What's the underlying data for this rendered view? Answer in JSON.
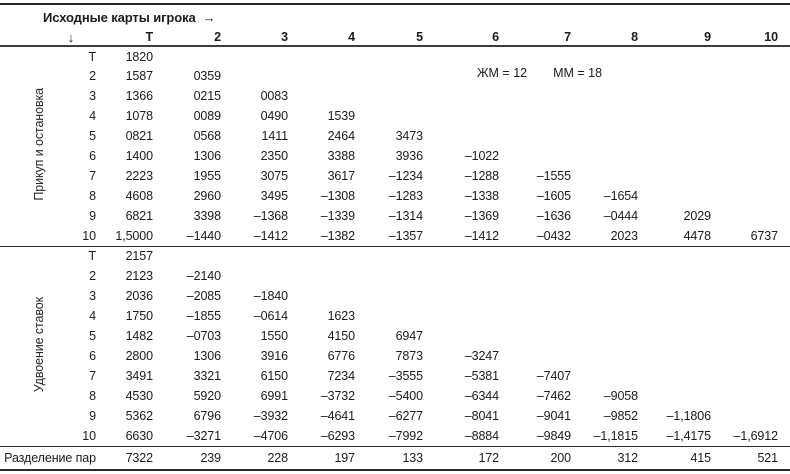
{
  "page": {
    "bg": "#ffffff",
    "text_color": "#1c1c1c",
    "line_color": "#2b2b2b"
  },
  "header": {
    "title": "Исходные карты игрока",
    "right_arrow_icon": "→",
    "down_arrow_icon": "↓",
    "columns": [
      "Т",
      "2",
      "3",
      "4",
      "5",
      "6",
      "7",
      "8",
      "9",
      "10"
    ]
  },
  "annotation": {
    "left": "ЖМ = 12",
    "right": "ММ = 18"
  },
  "sections": [
    {
      "label": "Прикуп и остановка",
      "rows": [
        {
          "label": "Т",
          "values": [
            "1820",
            "",
            "",
            "",
            "",
            "",
            "",
            "",
            "",
            ""
          ]
        },
        {
          "label": "2",
          "values": [
            "1587",
            "0359",
            "",
            "",
            "",
            "",
            "",
            "",
            "",
            ""
          ]
        },
        {
          "label": "3",
          "values": [
            "1366",
            "0215",
            "0083",
            "",
            "",
            "",
            "",
            "",
            "",
            ""
          ]
        },
        {
          "label": "4",
          "values": [
            "1078",
            "0089",
            "0490",
            "1539",
            "",
            "",
            "",
            "",
            "",
            ""
          ]
        },
        {
          "label": "5",
          "values": [
            "0821",
            "0568",
            "1411",
            "2464",
            "3473",
            "",
            "",
            "",
            "",
            ""
          ]
        },
        {
          "label": "6",
          "values": [
            "1400",
            "1306",
            "2350",
            "3388",
            "3936",
            "–1022",
            "",
            "",
            "",
            ""
          ]
        },
        {
          "label": "7",
          "values": [
            "2223",
            "1955",
            "3075",
            "3617",
            "–1234",
            "–1288",
            "–1555",
            "",
            "",
            ""
          ]
        },
        {
          "label": "8",
          "values": [
            "4608",
            "2960",
            "3495",
            "–1308",
            "–1283",
            "–1338",
            "–1605",
            "–1654",
            "",
            ""
          ]
        },
        {
          "label": "9",
          "values": [
            "6821",
            "3398",
            "–1368",
            "–1339",
            "–1314",
            "–1369",
            "–1636",
            "–0444",
            "2029",
            ""
          ]
        },
        {
          "label": "10",
          "values": [
            "1,5000",
            "–1440",
            "–1412",
            "–1382",
            "–1357",
            "–1412",
            "–0432",
            "2023",
            "4478",
            "6737"
          ]
        }
      ]
    },
    {
      "label": "Удвоение ставок",
      "rows": [
        {
          "label": "Т",
          "values": [
            "2157",
            "",
            "",
            "",
            "",
            "",
            "",
            "",
            "",
            ""
          ]
        },
        {
          "label": "2",
          "values": [
            "2123",
            "–2140",
            "",
            "",
            "",
            "",
            "",
            "",
            "",
            ""
          ]
        },
        {
          "label": "3",
          "values": [
            "2036",
            "–2085",
            "–1840",
            "",
            "",
            "",
            "",
            "",
            "",
            ""
          ]
        },
        {
          "label": "4",
          "values": [
            "1750",
            "–1855",
            "–0614",
            "1623",
            "",
            "",
            "",
            "",
            "",
            ""
          ]
        },
        {
          "label": "5",
          "values": [
            "1482",
            "–0703",
            "1550",
            "4150",
            "6947",
            "",
            "",
            "",
            "",
            ""
          ]
        },
        {
          "label": "6",
          "values": [
            "2800",
            "1306",
            "3916",
            "6776",
            "7873",
            "–3247",
            "",
            "",
            "",
            ""
          ]
        },
        {
          "label": "7",
          "values": [
            "3491",
            "3321",
            "6150",
            "7234",
            "–3555",
            "–5381",
            "–7407",
            "",
            "",
            ""
          ]
        },
        {
          "label": "8",
          "values": [
            "4530",
            "5920",
            "6991",
            "–3732",
            "–5400",
            "–6344",
            "–7462",
            "–9058",
            "",
            ""
          ]
        },
        {
          "label": "9",
          "values": [
            "5362",
            "6796",
            "–3932",
            "–4641",
            "–6277",
            "–8041",
            "–9041",
            "–9852",
            "–1,1806",
            ""
          ]
        },
        {
          "label": "10",
          "values": [
            "6630",
            "–3271",
            "–4706",
            "–6293",
            "–7992",
            "–8884",
            "–9849",
            "–1,1815",
            "–1,4175",
            "–1,6912"
          ]
        }
      ]
    }
  ],
  "footer": {
    "label": "Разделение пар",
    "values": [
      "7322",
      "239",
      "228",
      "197",
      "133",
      "172",
      "200",
      "312",
      "415",
      "521"
    ]
  },
  "layout_columns": [
    46,
    50,
    57,
    68,
    67,
    67,
    68,
    76,
    72,
    67,
    73,
    67,
    12
  ]
}
